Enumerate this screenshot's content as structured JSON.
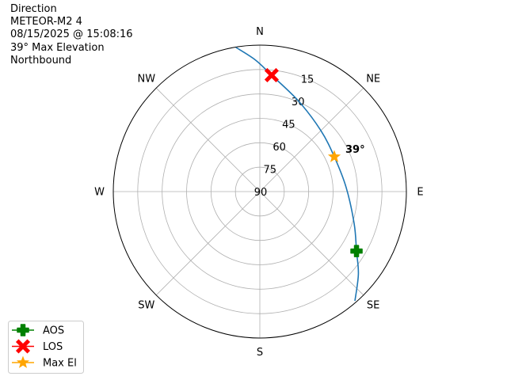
{
  "title_lines": [
    "Direction",
    "METEOR-M2 4",
    "08/15/2025 @ 15:08:16",
    "39° Max Elevation",
    "Northbound"
  ],
  "chart_data": {
    "type": "polar-line",
    "theta_direction": "clockwise",
    "theta_zero": "N",
    "radial_axis": "elevation (90 at center, 0 at edge)",
    "rlim": [
      90,
      0
    ],
    "grid": true,
    "direction_labels": [
      {
        "label": "N",
        "az": 0
      },
      {
        "label": "NE",
        "az": 45
      },
      {
        "label": "E",
        "az": 90
      },
      {
        "label": "SE",
        "az": 135
      },
      {
        "label": "S",
        "az": 180
      },
      {
        "label": "SW",
        "az": 225
      },
      {
        "label": "W",
        "az": 270
      },
      {
        "label": "NW",
        "az": 315
      }
    ],
    "radial_ticks": [
      90,
      75,
      60,
      45,
      30,
      15
    ],
    "track": {
      "color": "#1f77b4",
      "points": [
        {
          "az": 139,
          "el": 1.0
        },
        {
          "az": 130,
          "el": 11
        },
        {
          "az": 121.6,
          "el": 20.3
        },
        {
          "az": 109,
          "el": 28.7
        },
        {
          "az": 87.4,
          "el": 36.9
        },
        {
          "az": 64.9,
          "el": 39.5
        },
        {
          "az": 45,
          "el": 37.0
        },
        {
          "az": 23.3,
          "el": 29.6
        },
        {
          "az": 5.8,
          "el": 18.1
        },
        {
          "az": -2,
          "el": 9
        },
        {
          "az": -9.4,
          "el": 0.2
        }
      ]
    },
    "markers": [
      {
        "name": "AOS",
        "az": 121.6,
        "el": 20.3,
        "color": "#008000",
        "shape": "plus"
      },
      {
        "name": "LOS",
        "az": 5.8,
        "el": 18.1,
        "color": "#ff0000",
        "shape": "x"
      },
      {
        "name": "Max El",
        "az": 64.9,
        "el": 39.5,
        "color": "#ffa500",
        "shape": "star"
      }
    ],
    "annotation": {
      "text": "39°",
      "az": 64.9,
      "el": 39.5
    },
    "legend": {
      "placement": "lower-left",
      "entries": [
        "AOS",
        "LOS",
        "Max El"
      ]
    }
  }
}
